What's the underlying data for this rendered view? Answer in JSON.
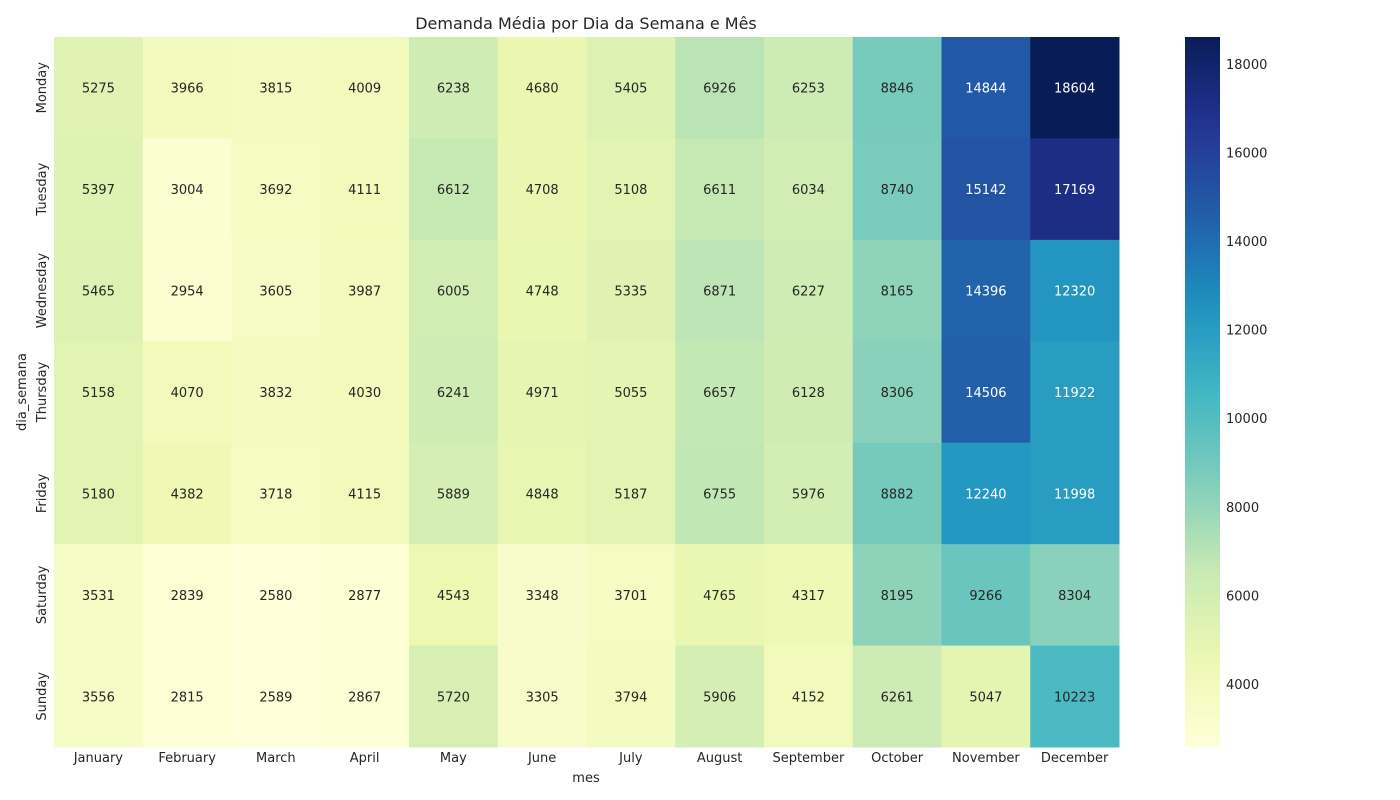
{
  "chart_data": {
    "type": "heatmap",
    "title": "Demanda Média por Dia da Semana e Mês",
    "xlabel": "mes",
    "ylabel": "dia_semana",
    "colormap": "YlGnBu",
    "x_categories": [
      "January",
      "February",
      "March",
      "April",
      "May",
      "June",
      "July",
      "August",
      "September",
      "October",
      "November",
      "December"
    ],
    "y_categories": [
      "Monday",
      "Tuesday",
      "Wednesday",
      "Thursday",
      "Friday",
      "Saturday",
      "Sunday"
    ],
    "values": [
      [
        5275,
        3966,
        3815,
        4009,
        6238,
        4680,
        5405,
        6926,
        6253,
        8846,
        14844,
        18604
      ],
      [
        5397,
        3004,
        3692,
        4111,
        6612,
        4708,
        5108,
        6611,
        6034,
        8740,
        15142,
        17169
      ],
      [
        5465,
        2954,
        3605,
        3987,
        6005,
        4748,
        5335,
        6871,
        6227,
        8165,
        14396,
        12320
      ],
      [
        5158,
        4070,
        3832,
        4030,
        6241,
        4971,
        5055,
        6657,
        6128,
        8306,
        14506,
        11922
      ],
      [
        5180,
        4382,
        3718,
        4115,
        5889,
        4848,
        5187,
        6755,
        5976,
        8882,
        12240,
        11998
      ],
      [
        3531,
        2839,
        2580,
        2877,
        4543,
        3348,
        3701,
        4765,
        4317,
        8195,
        9266,
        8304
      ],
      [
        3556,
        2815,
        2589,
        2867,
        5720,
        3305,
        3794,
        5906,
        4152,
        6261,
        5047,
        10223
      ]
    ],
    "vmin": 2580,
    "vmax": 18604,
    "colorbar_ticks": [
      4000,
      6000,
      8000,
      10000,
      12000,
      14000,
      16000,
      18000
    ]
  }
}
